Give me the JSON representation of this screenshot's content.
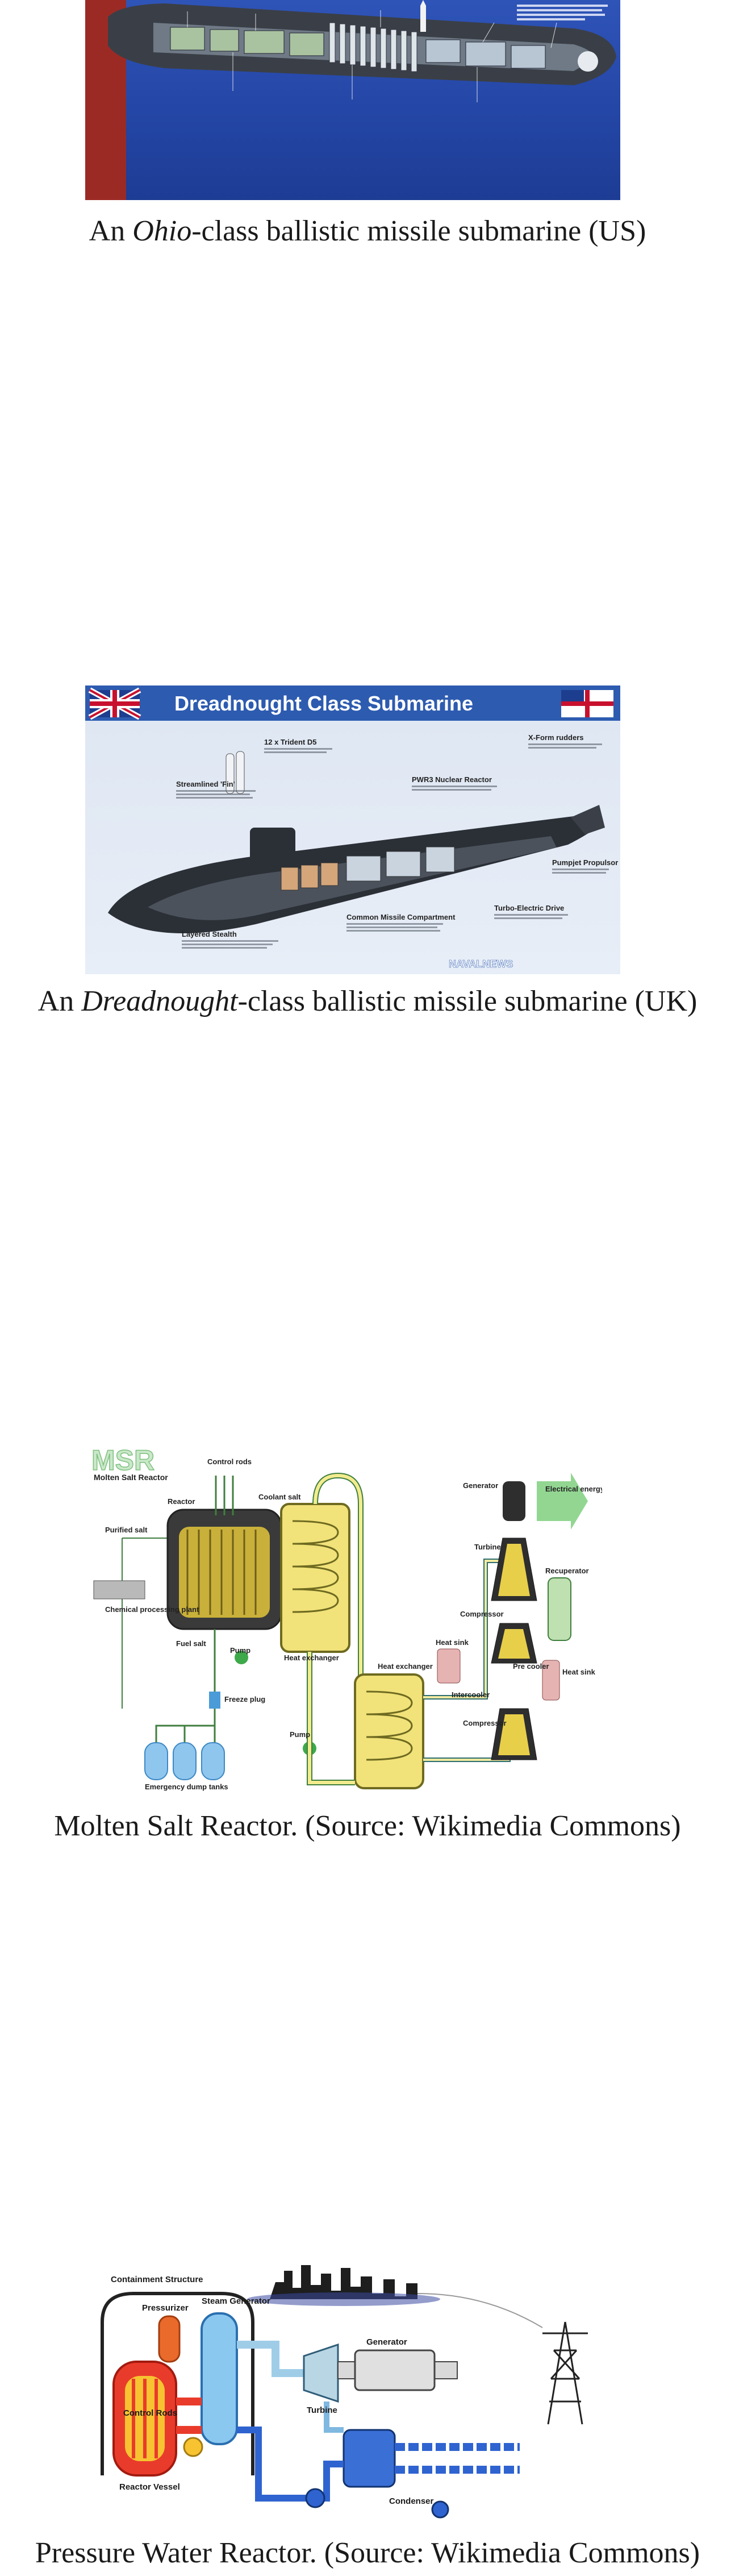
{
  "figures": [
    {
      "id": "ohio",
      "caption_prefix": "An ",
      "caption_italic": "Ohio",
      "caption_suffix": "-class ballistic missile submarine (US)"
    },
    {
      "id": "dreadnought",
      "caption_prefix": "An ",
      "caption_italic": "Dreadnought",
      "caption_suffix": "-class ballistic missile submarine (UK)",
      "image_text": {
        "title": "Dreadnought Class Submarine",
        "trident": "12 x Trident D5",
        "streamlined": "Streamlined 'Fin'",
        "reactor": "PWR3 Nuclear Reactor",
        "rudders": "X-Form rudders",
        "pumpjet": "Pumpjet Propulsor",
        "drive": "Turbo-Electric Drive",
        "compartment": "Common Missile Compartment",
        "stealth": "Layered Stealth",
        "logo": "NAVALNEWS"
      }
    },
    {
      "id": "msr",
      "caption": "Molten Salt Reactor. (Source: Wikimedia Commons)",
      "image_text": {
        "logo": "MSR",
        "logo_sub": "Molten Salt Reactor",
        "control_rods": "Control rods",
        "coolant_salt": "Coolant salt",
        "reactor": "Reactor",
        "purified_salt": "Purified salt",
        "fuel_salt": "Fuel salt",
        "pump1": "Pump",
        "heat_exchanger1": "Heat exchanger",
        "heat_exchanger2": "Heat exchanger",
        "chemical_plant": "Chemical processing plant",
        "freeze_plug": "Freeze plug",
        "dump_tanks": "Emergency dump tanks",
        "pump2": "Pump",
        "generator": "Generator",
        "electrical_energy": "Electrical energy",
        "turbine": "Turbine",
        "recuperator": "Recuperator",
        "compressor1": "Compressor",
        "heat_sink1": "Heat sink",
        "pre_cooler": "Pre cooler",
        "heat_sink2": "Heat sink",
        "intercooler": "Intercooler",
        "compressor2": "Compressor"
      }
    },
    {
      "id": "pwr",
      "caption": "Pressure Water Reactor. (Source: Wikimedia Commons)",
      "image_text": {
        "containment": "Containment Structure",
        "pressurizer": "Pressurizer",
        "steam_generator": "Steam Generator",
        "control_rods": "Control Rods",
        "reactor_vessel": "Reactor Vessel",
        "generator": "Generator",
        "turbine": "Turbine",
        "condenser": "Condenser"
      }
    }
  ]
}
